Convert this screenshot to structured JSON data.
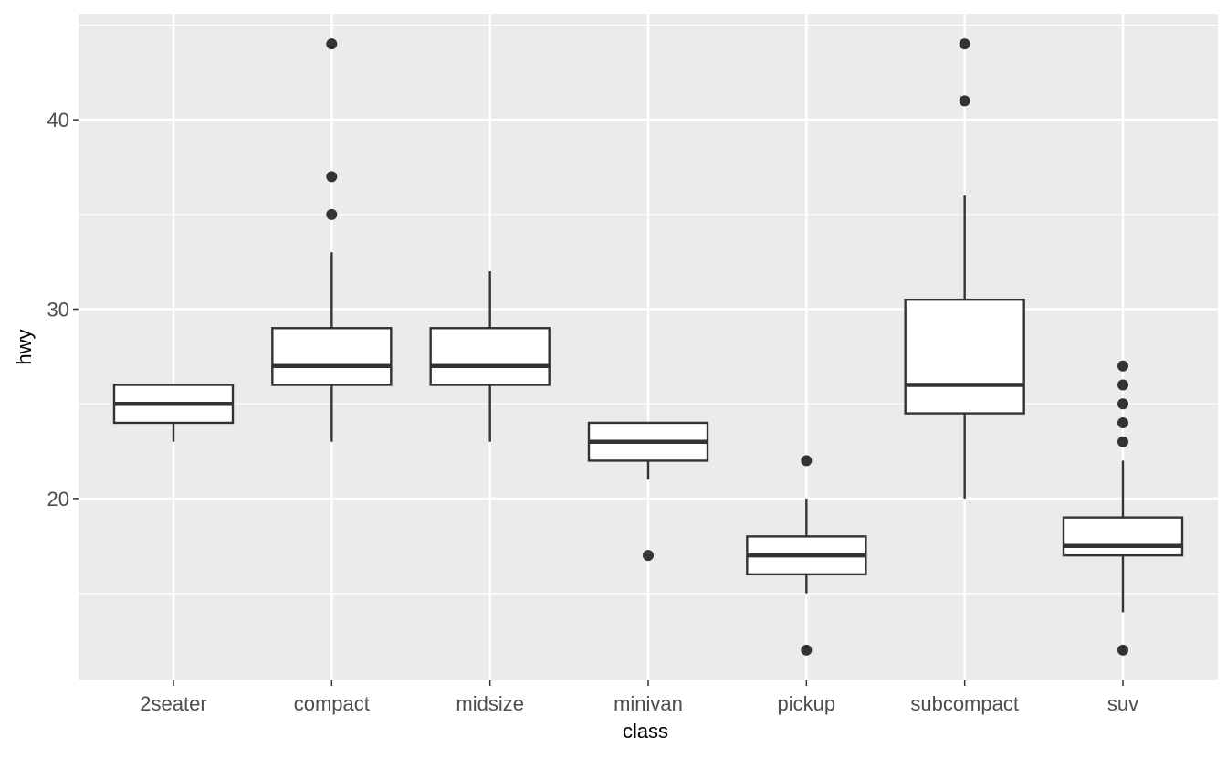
{
  "chart_data": {
    "type": "boxplot",
    "title": "",
    "xlabel": "class",
    "ylabel": "hwy",
    "ylim": [
      10.4,
      45.6
    ],
    "y_ticks": [
      20,
      30,
      40
    ],
    "y_tick_labels": [
      "20",
      "30",
      "40"
    ],
    "grid": true,
    "categories": [
      "2seater",
      "compact",
      "midsize",
      "minivan",
      "pickup",
      "subcompact",
      "suv"
    ],
    "boxes": [
      {
        "category": "2seater",
        "whisker_low": 23,
        "q1": 24,
        "median": 25,
        "q3": 26,
        "whisker_high": 26,
        "outliers": []
      },
      {
        "category": "compact",
        "whisker_low": 23,
        "q1": 26,
        "median": 27,
        "q3": 29,
        "whisker_high": 33,
        "outliers": [
          35,
          37,
          44
        ]
      },
      {
        "category": "midsize",
        "whisker_low": 23,
        "q1": 26,
        "median": 27,
        "q3": 29,
        "whisker_high": 32,
        "outliers": []
      },
      {
        "category": "minivan",
        "whisker_low": 21,
        "q1": 22,
        "median": 23,
        "q3": 24,
        "whisker_high": 24,
        "outliers": [
          17
        ]
      },
      {
        "category": "pickup",
        "whisker_low": 15,
        "q1": 16,
        "median": 17,
        "q3": 18,
        "whisker_high": 20,
        "outliers": [
          12,
          22
        ]
      },
      {
        "category": "subcompact",
        "whisker_low": 20,
        "q1": 24.5,
        "median": 26,
        "q3": 30.5,
        "whisker_high": 36,
        "outliers": [
          41,
          44
        ]
      },
      {
        "category": "suv",
        "whisker_low": 14,
        "q1": 17,
        "median": 17.5,
        "q3": 19,
        "whisker_high": 22,
        "outliers": [
          12,
          23,
          24,
          25,
          26,
          27
        ]
      }
    ]
  }
}
